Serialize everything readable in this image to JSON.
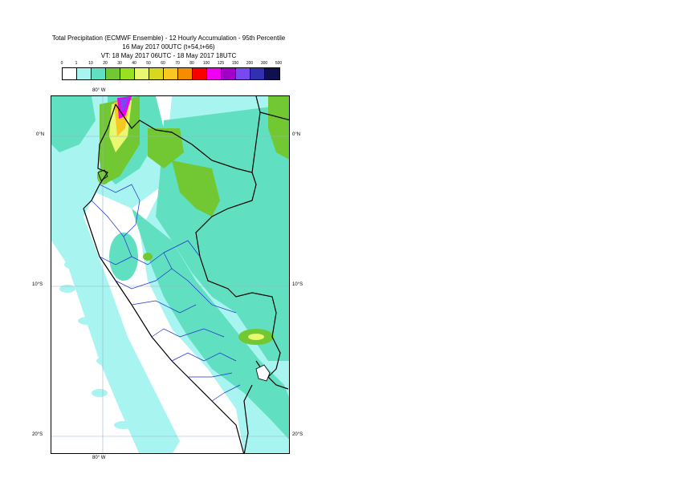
{
  "title": {
    "line1": "Total Precipitation (ECMWF Ensemble) - 12 Hourly Accumulation - 95th Percentile",
    "line2": "16 May 2017 00UTC (t+54,t+66)",
    "line3": "VT: 18 May 2017 06UTC - 18 May 2017 18UTC"
  },
  "legend": {
    "ticks": [
      "0",
      "1",
      "10",
      "20",
      "30",
      "40",
      "50",
      "60",
      "70",
      "80",
      "100",
      "125",
      "150",
      "200",
      "300",
      "500"
    ],
    "colors": [
      "#ffffff",
      "#a8f4f0",
      "#60e0c0",
      "#72c832",
      "#98e020",
      "#e8f870",
      "#d8d820",
      "#f8c820",
      "#f88c00",
      "#f80000",
      "#f000f0",
      "#a000c8",
      "#7848f0",
      "#3030b0",
      "#101050"
    ]
  },
  "map": {
    "lon_labels": [
      "80° W",
      "80° W"
    ],
    "lat_labels": {
      "left": [
        "0°N",
        "10°S",
        "20°S"
      ],
      "right": [
        "0°N",
        "10°S",
        "20°S"
      ]
    }
  }
}
